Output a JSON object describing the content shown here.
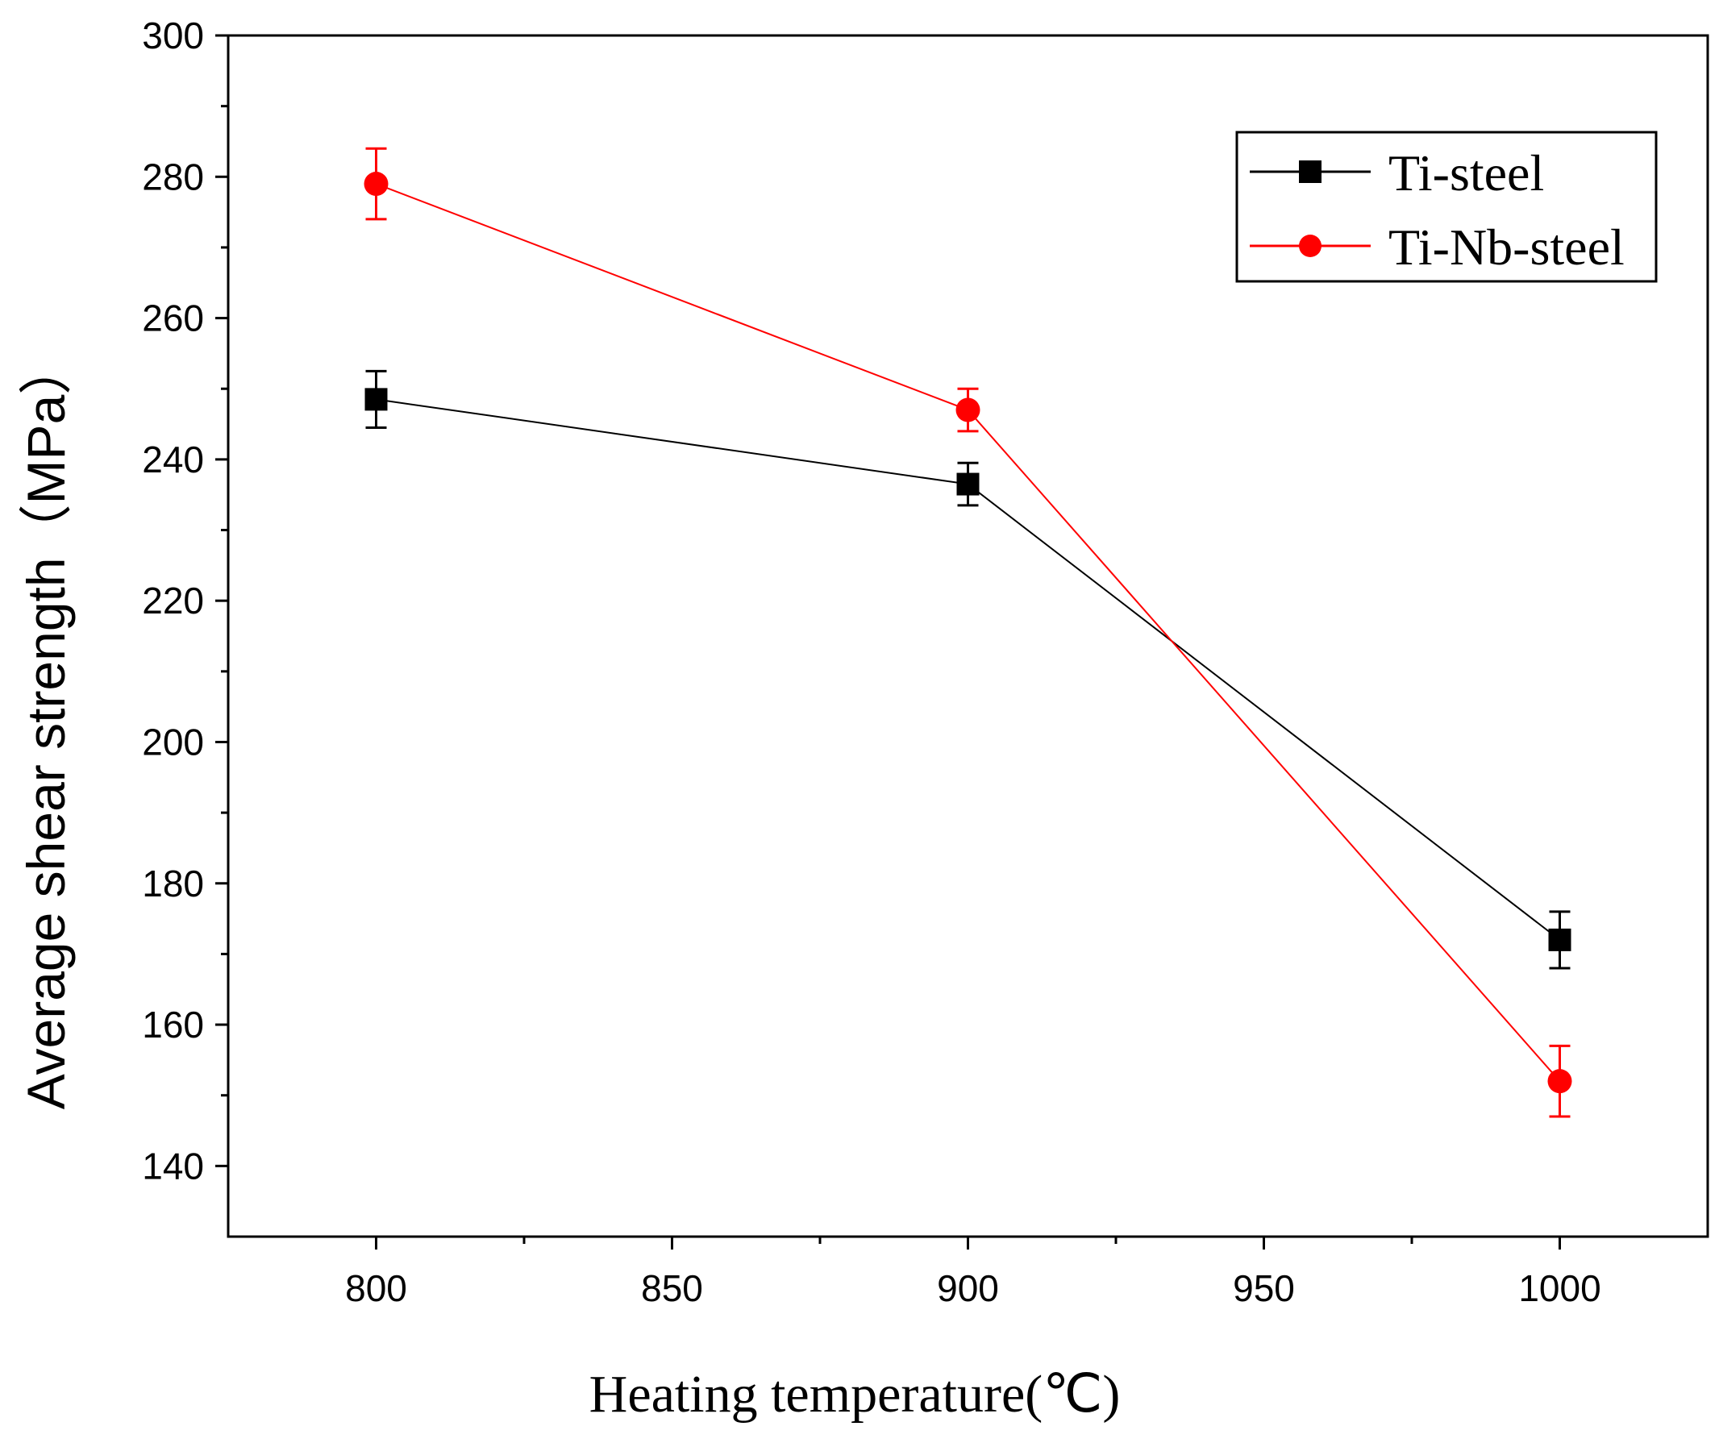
{
  "chart_data": {
    "type": "line",
    "title": "",
    "xlabel": "Heating temperature(℃)",
    "ylabel": "Average shear strength（MPa）",
    "xlim": [
      775,
      1025
    ],
    "ylim": [
      130,
      300
    ],
    "x_ticks": [
      800,
      850,
      900,
      950,
      1000
    ],
    "x_tick_labels": [
      "800",
      "850",
      "900",
      "950",
      "1000"
    ],
    "x_minor_ticks": [
      825,
      875,
      925,
      975
    ],
    "y_ticks": [
      140,
      160,
      180,
      200,
      220,
      240,
      260,
      280,
      300
    ],
    "y_tick_labels": [
      "140",
      "160",
      "180",
      "200",
      "220",
      "240",
      "260",
      "280",
      "300"
    ],
    "y_minor_ticks": [
      150,
      170,
      190,
      210,
      230,
      250,
      270,
      290
    ],
    "grid": false,
    "legend_position": "top-right",
    "x": [
      800,
      900,
      1000
    ],
    "series": [
      {
        "name": "Ti-steel",
        "color": "#000000",
        "marker": "square",
        "values": [
          248.5,
          236.5,
          172
        ],
        "error": [
          4,
          3,
          4
        ]
      },
      {
        "name": "Ti-Nb-steel",
        "color": "#ff0000",
        "marker": "circle",
        "values": [
          279,
          247,
          152
        ],
        "error": [
          5,
          3,
          5
        ]
      }
    ]
  }
}
